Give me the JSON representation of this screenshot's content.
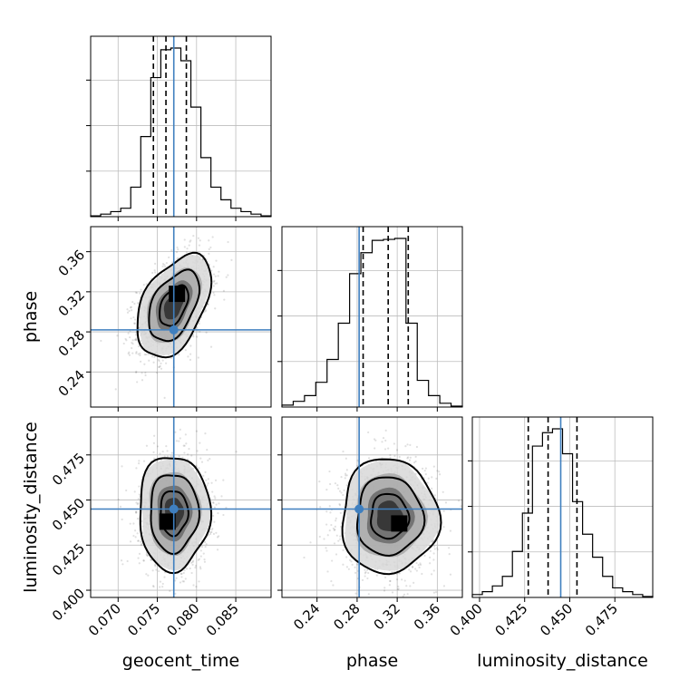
{
  "chart_data": {
    "type": "corner",
    "parameters": [
      {
        "name": "geocent_time",
        "label": "geocent_time",
        "range": [
          0.0665,
          0.0895
        ],
        "ticks": [
          0.07,
          0.075,
          0.08,
          0.085
        ],
        "tick_labels": [
          "0.070",
          "0.075",
          "0.080",
          "0.085"
        ],
        "truth": 0.0771,
        "quantiles": [
          0.0745,
          0.0761,
          0.0787
        ]
      },
      {
        "name": "phase",
        "label": "phase",
        "range": [
          0.205,
          0.385
        ],
        "ticks": [
          0.24,
          0.28,
          0.32,
          0.36
        ],
        "tick_labels": [
          "0.24",
          "0.28",
          "0.32",
          "0.36"
        ],
        "truth": 0.282,
        "quantiles": [
          0.286,
          0.311,
          0.331
        ]
      },
      {
        "name": "luminosity_distance",
        "label": "luminosity_distance",
        "range": [
          0.396,
          0.496
        ],
        "ticks": [
          0.4,
          0.425,
          0.45,
          0.475
        ],
        "tick_labels": [
          "0.400",
          "0.425",
          "0.450",
          "0.475"
        ],
        "truth": 0.445,
        "quantiles": [
          0.427,
          0.438,
          0.454
        ]
      }
    ],
    "histograms": [
      {
        "param": "geocent_time",
        "counts": [
          1,
          3,
          6,
          10,
          35,
          95,
          165,
          198,
          200,
          185,
          130,
          70,
          35,
          20,
          10,
          6,
          3,
          1
        ]
      },
      {
        "param": "phase",
        "counts": [
          2,
          6,
          12,
          26,
          50,
          88,
          140,
          162,
          175,
          176,
          177,
          88,
          28,
          12,
          4,
          1
        ]
      },
      {
        "param": "luminosity_distance",
        "counts": [
          3,
          6,
          12,
          22,
          48,
          88,
          158,
          172,
          176,
          150,
          100,
          66,
          42,
          22,
          10,
          6,
          3,
          1
        ]
      }
    ],
    "pairs": [
      {
        "x": "geocent_time",
        "y": "phase",
        "center": [
          0.0771,
          0.306
        ],
        "sigma": [
          0.0023,
          0.025
        ],
        "rho": 0.45,
        "peak": [
          0.0775,
          0.318
        ]
      },
      {
        "x": "geocent_time",
        "y": "luminosity_distance",
        "center": [
          0.0771,
          0.443
        ],
        "sigma": [
          0.0022,
          0.0155
        ],
        "rho": 0.0,
        "peak": [
          0.0763,
          0.438
        ]
      },
      {
        "x": "phase",
        "y": "luminosity_distance",
        "center": [
          0.312,
          0.441
        ],
        "sigma": [
          0.0235,
          0.0155
        ],
        "rho": 0.0,
        "peak": [
          0.322,
          0.437
        ]
      }
    ],
    "truth_color": "#3f7fbf",
    "grid": true
  }
}
